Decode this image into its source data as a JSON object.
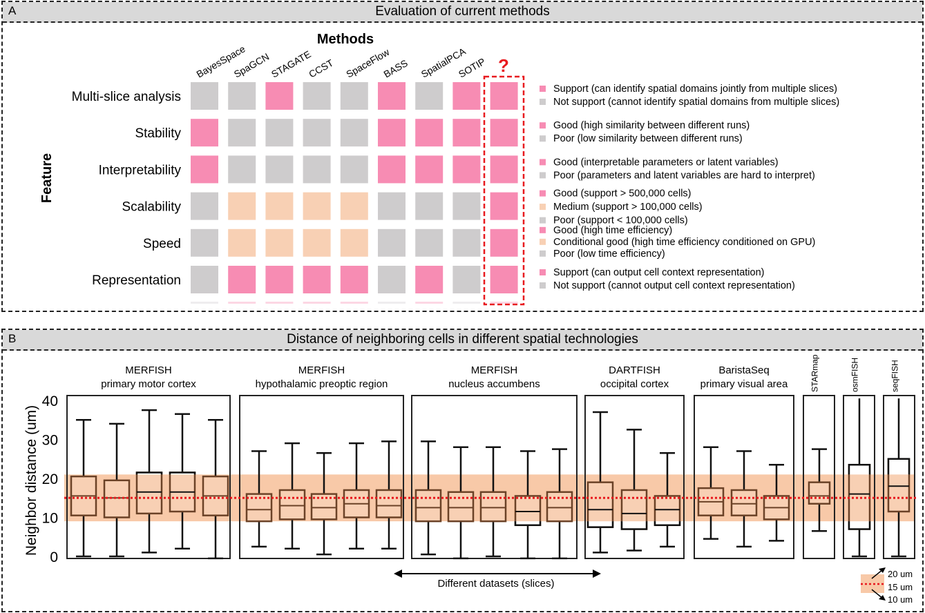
{
  "panel_a": {
    "letter": "A",
    "title": "Evaluation of current methods",
    "methods_label": "Methods",
    "feature_label": "Feature",
    "question_mark": "?"
  },
  "panel_b": {
    "letter": "B",
    "title": "Distance of neighboring cells in different spatial technologies",
    "ylabel": "Neighbor distance (um)",
    "arrow_label": "Different datasets (slices)",
    "legend": {
      "upper": "20 um",
      "middle": "15 um",
      "lower": "10 um"
    }
  },
  "colors": {
    "pink": "#f78cb3",
    "gray": "#cecccd",
    "peach": "#f8d0b4",
    "band": "#f8c9a8",
    "box_edge": "#6b4227",
    "red": "#e8191e"
  },
  "chart_data": [
    {
      "type": "heatmap",
      "title": "Evaluation of current methods",
      "xlabel": "Methods",
      "ylabel": "Feature",
      "methods": [
        "BayesSpace",
        "SpaGCN",
        "STAGATE",
        "CCST",
        "SpaceFlow",
        "BASS",
        "SpatialPCA",
        "SOTIP",
        "?"
      ],
      "features": [
        {
          "name": "Multi-slice analysis",
          "values": [
            "gray",
            "gray",
            "pink",
            "gray",
            "gray",
            "pink",
            "gray",
            "pink",
            "pink"
          ],
          "legend": [
            {
              "color": "pink",
              "text": "Support (can identify spatial domains jointly from multiple slices)"
            },
            {
              "color": "gray",
              "text": "Not support (cannot identify spatial domains from multiple slices)"
            }
          ]
        },
        {
          "name": "Stability",
          "values": [
            "pink",
            "gray",
            "gray",
            "gray",
            "gray",
            "pink",
            "pink",
            "pink",
            "pink"
          ],
          "legend": [
            {
              "color": "pink",
              "text": "Good (high similarity between different runs)"
            },
            {
              "color": "gray",
              "text": "Poor (low similarity between different runs)"
            }
          ]
        },
        {
          "name": "Interpretability",
          "values": [
            "pink",
            "gray",
            "gray",
            "gray",
            "gray",
            "pink",
            "pink",
            "pink",
            "pink"
          ],
          "legend": [
            {
              "color": "pink",
              "text": "Good (interpretable parameters or latent variables)"
            },
            {
              "color": "gray",
              "text": "Poor (parameters and latent variables are hard to interpret)"
            }
          ]
        },
        {
          "name": "Scalability",
          "values": [
            "gray",
            "peach",
            "peach",
            "peach",
            "peach",
            "gray",
            "gray",
            "gray",
            "pink"
          ],
          "legend": [
            {
              "color": "pink",
              "text": "Good (support > 500,000 cells)"
            },
            {
              "color": "peach",
              "text": "Medium (support > 100,000 cells)"
            },
            {
              "color": "gray",
              "text": "Poor (support < 100,000 cells)"
            }
          ]
        },
        {
          "name": "Speed",
          "values": [
            "gray",
            "peach",
            "peach",
            "peach",
            "peach",
            "gray",
            "gray",
            "gray",
            "pink"
          ],
          "legend": [
            {
              "color": "pink",
              "text": "Good (high time efficiency)"
            },
            {
              "color": "peach",
              "text": "Conditional good (high time efficiency conditioned on GPU)"
            },
            {
              "color": "gray",
              "text": "Poor (low time efficiency)"
            }
          ]
        },
        {
          "name": "Representation",
          "values": [
            "gray",
            "pink",
            "pink",
            "pink",
            "pink",
            "gray",
            "pink",
            "gray",
            "pink"
          ],
          "legend": [
            {
              "color": "pink",
              "text": "Support (can output cell context representation)"
            },
            {
              "color": "gray",
              "text": "Not support (cannot output cell context representation)"
            }
          ]
        }
      ]
    },
    {
      "type": "box",
      "title": "Distance of neighboring cells in different spatial technologies",
      "ylabel": "Neighbor distance (um)",
      "ylim": [
        0,
        40
      ],
      "yticks": [
        0,
        10,
        20,
        30,
        40
      ],
      "reference": {
        "line": 15,
        "band": [
          9,
          21
        ]
      },
      "groups": [
        {
          "title": [
            "MERFISH",
            "primary motor cortex"
          ],
          "rotated": false,
          "boxes": [
            {
              "wlo": 0,
              "q1": 10.5,
              "med": 15.5,
              "q3": 20.5,
              "whi": 35
            },
            {
              "wlo": 0,
              "q1": 10,
              "med": 15,
              "q3": 19.5,
              "whi": 34
            },
            {
              "wlo": 1,
              "q1": 11,
              "med": 16.5,
              "q3": 21.5,
              "whi": 37.5
            },
            {
              "wlo": 2,
              "q1": 11.5,
              "med": 16.5,
              "q3": 21.5,
              "whi": 36.5
            },
            {
              "wlo": -0.5,
              "q1": 10.5,
              "med": 15.5,
              "q3": 20.5,
              "whi": 35
            }
          ]
        },
        {
          "title": [
            "MERFISH",
            "hypothalamic preoptic region"
          ],
          "rotated": false,
          "boxes": [
            {
              "wlo": 2.5,
              "q1": 9,
              "med": 12,
              "q3": 16,
              "whi": 27
            },
            {
              "wlo": 2,
              "q1": 9.5,
              "med": 13,
              "q3": 17,
              "whi": 29
            },
            {
              "wlo": 0.5,
              "q1": 9.5,
              "med": 12.5,
              "q3": 16,
              "whi": 26.5
            },
            {
              "wlo": 2,
              "q1": 10,
              "med": 13.5,
              "q3": 17,
              "whi": 29
            },
            {
              "wlo": 2,
              "q1": 10,
              "med": 13,
              "q3": 17,
              "whi": 29.5
            }
          ]
        },
        {
          "title": [
            "MERFISH",
            "nucleus accumbens"
          ],
          "rotated": false,
          "boxes": [
            {
              "wlo": 0.5,
              "q1": 9,
              "med": 12.5,
              "q3": 17,
              "whi": 29.5
            },
            {
              "wlo": -0.5,
              "q1": 9,
              "med": 12.5,
              "q3": 16.5,
              "whi": 28
            },
            {
              "wlo": 0,
              "q1": 9,
              "med": 12.5,
              "q3": 16.5,
              "whi": 28
            },
            {
              "wlo": -0.5,
              "q1": 8,
              "med": 11.5,
              "q3": 15.5,
              "whi": 27
            },
            {
              "wlo": -0.5,
              "q1": 9,
              "med": 12.5,
              "q3": 16.5,
              "whi": 27.5
            }
          ]
        },
        {
          "title": [
            "DARTFISH",
            "occipital cortex"
          ],
          "rotated": false,
          "boxes": [
            {
              "wlo": 1,
              "q1": 7.5,
              "med": 12,
              "q3": 19,
              "whi": 37
            },
            {
              "wlo": 1.5,
              "q1": 7,
              "med": 11,
              "q3": 17,
              "whi": 32.5
            },
            {
              "wlo": 2.5,
              "q1": 8,
              "med": 12,
              "q3": 15.5,
              "whi": 26.5
            }
          ]
        },
        {
          "title": [
            "BaristaSeq",
            "primary visual area"
          ],
          "rotated": false,
          "boxes": [
            {
              "wlo": 4.5,
              "q1": 10.5,
              "med": 14,
              "q3": 17.5,
              "whi": 28
            },
            {
              "wlo": 2.5,
              "q1": 10.5,
              "med": 13.5,
              "q3": 17,
              "whi": 27
            },
            {
              "wlo": 4,
              "q1": 9.5,
              "med": 12.5,
              "q3": 15.5,
              "whi": 23.5
            }
          ]
        },
        {
          "title": [
            "STARmap"
          ],
          "rotated": true,
          "boxes": [
            {
              "wlo": 6.5,
              "q1": 13.5,
              "med": 15.5,
              "q3": 19,
              "whi": 27.5
            }
          ]
        },
        {
          "title": [
            "osmFISH"
          ],
          "rotated": true,
          "boxes": [
            {
              "wlo": 0,
              "q1": 7,
              "med": 16,
              "q3": 23.5,
              "whi": 40.5
            }
          ]
        },
        {
          "title": [
            "seqFISH"
          ],
          "rotated": true,
          "boxes": [
            {
              "wlo": 0,
              "q1": 11.5,
              "med": 18,
              "q3": 25,
              "whi": 40.5
            }
          ]
        }
      ]
    }
  ]
}
